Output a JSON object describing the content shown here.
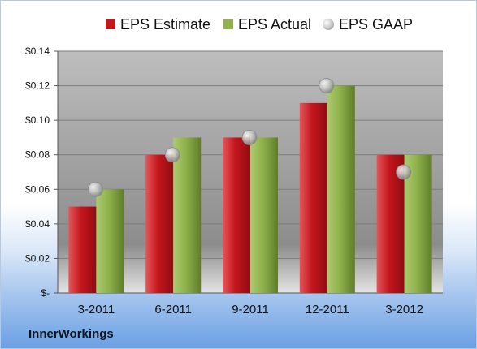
{
  "chart_data": {
    "type": "bar",
    "categories": [
      "3-2011",
      "6-2011",
      "9-2011",
      "12-2011",
      "3-2012"
    ],
    "series": [
      {
        "name": "EPS Estimate",
        "type": "bar",
        "color": "#c4161c",
        "values": [
          0.05,
          0.08,
          0.09,
          0.11,
          0.08
        ]
      },
      {
        "name": "EPS Actual",
        "type": "bar",
        "color": "#8fb24b",
        "values": [
          0.06,
          0.09,
          0.09,
          0.12,
          0.08
        ]
      },
      {
        "name": "EPS GAAP",
        "type": "scatter",
        "color": "#b0b0b0",
        "values": [
          0.06,
          0.08,
          0.09,
          0.12,
          0.07
        ]
      }
    ],
    "ylim": [
      0,
      0.14
    ],
    "y_ticks": [
      0,
      0.02,
      0.04,
      0.06,
      0.08,
      0.1,
      0.12,
      0.14
    ],
    "y_tick_labels": [
      "$-",
      "$0.02",
      "$0.04",
      "$0.06",
      "$0.08",
      "$0.10",
      "$0.12",
      "$0.14"
    ],
    "grid": true,
    "legend_position": "top"
  },
  "legend": {
    "estimate": "EPS Estimate",
    "actual": "EPS Actual",
    "gaap": "EPS GAAP"
  },
  "company": "InnerWorkings"
}
